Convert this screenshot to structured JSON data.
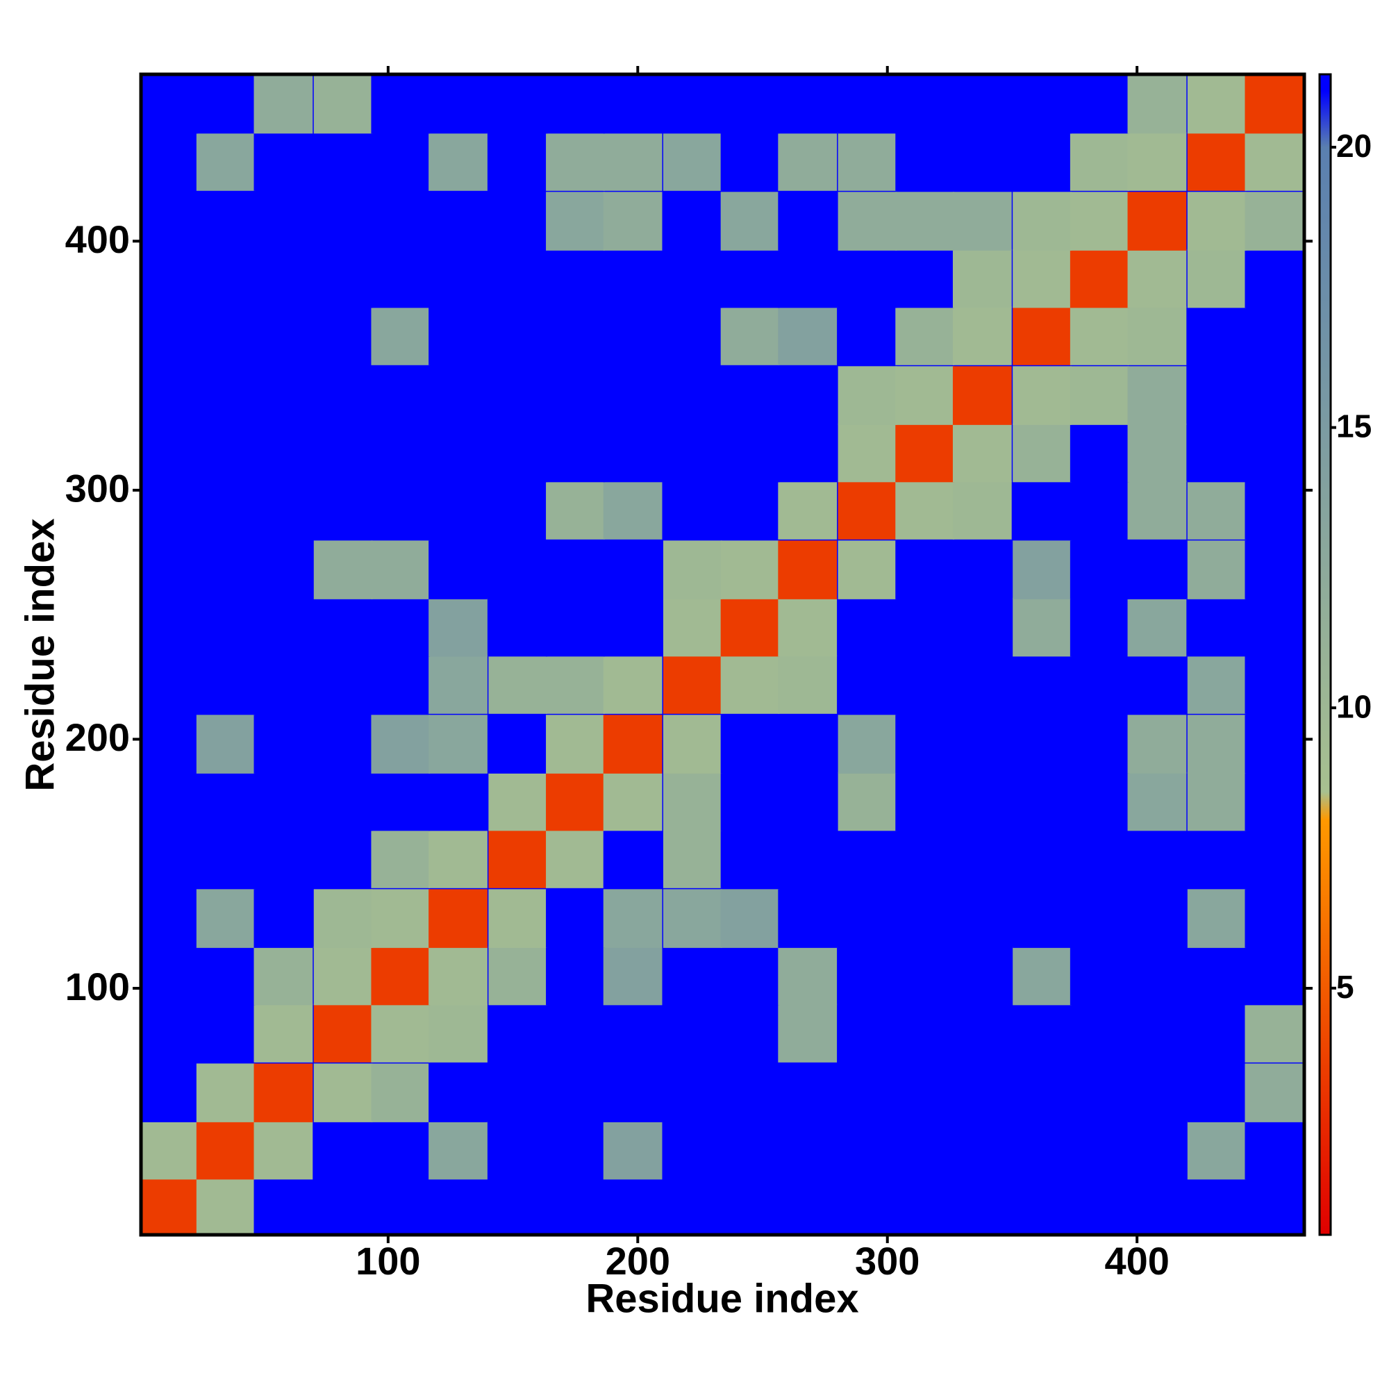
{
  "chart_data": {
    "type": "heatmap",
    "x_label": "Residue index",
    "y_label": "Residue index",
    "x": [
      12,
      35,
      58,
      82,
      105,
      128,
      152,
      175,
      198,
      222,
      245,
      268,
      292,
      315,
      338,
      362,
      385,
      408,
      432,
      455
    ],
    "y": [
      12,
      35,
      58,
      82,
      105,
      128,
      152,
      175,
      198,
      222,
      245,
      268,
      292,
      315,
      338,
      362,
      385,
      408,
      432,
      455
    ],
    "z": [
      [
        3.5,
        9.5,
        21,
        21,
        21,
        21,
        21,
        21,
        21,
        21,
        21,
        21,
        21,
        21,
        21,
        21,
        21,
        21,
        21,
        21
      ],
      [
        9.5,
        3.5,
        9.5,
        21,
        21,
        13,
        21,
        21,
        14,
        21,
        21,
        21,
        21,
        21,
        21,
        21,
        21,
        21,
        13,
        21
      ],
      [
        21,
        9.5,
        3.5,
        9.5,
        11,
        21,
        21,
        21,
        21,
        21,
        21,
        21,
        21,
        21,
        21,
        21,
        21,
        21,
        21,
        12
      ],
      [
        21,
        21,
        9.5,
        3.5,
        9.5,
        10,
        21,
        21,
        21,
        21,
        21,
        12,
        21,
        21,
        21,
        21,
        21,
        21,
        21,
        11
      ],
      [
        21,
        21,
        11,
        9.5,
        3.5,
        9.5,
        11,
        21,
        14,
        21,
        21,
        12,
        21,
        21,
        21,
        13,
        21,
        21,
        21,
        21
      ],
      [
        21,
        13,
        21,
        10,
        9.5,
        3.5,
        9.5,
        21,
        13,
        13,
        14,
        21,
        21,
        21,
        21,
        21,
        21,
        21,
        13,
        21
      ],
      [
        21,
        21,
        21,
        21,
        11,
        9.5,
        3.5,
        9.5,
        21,
        11,
        21,
        21,
        21,
        21,
        21,
        21,
        21,
        21,
        21,
        21
      ],
      [
        21,
        21,
        21,
        21,
        21,
        21,
        9.5,
        3.5,
        9.5,
        11,
        21,
        21,
        11,
        21,
        21,
        21,
        21,
        13,
        12,
        21
      ],
      [
        21,
        14,
        21,
        21,
        14,
        13,
        21,
        9.5,
        3.5,
        9.5,
        21,
        21,
        13,
        21,
        21,
        21,
        21,
        12,
        12,
        21
      ],
      [
        21,
        21,
        21,
        21,
        21,
        13,
        11,
        11,
        9.5,
        3.5,
        9.5,
        10,
        21,
        21,
        21,
        21,
        21,
        21,
        13,
        21
      ],
      [
        21,
        21,
        21,
        21,
        21,
        14,
        21,
        21,
        21,
        9.5,
        3.5,
        9.5,
        21,
        21,
        21,
        12,
        21,
        13,
        21,
        21
      ],
      [
        21,
        21,
        21,
        12,
        12,
        21,
        21,
        21,
        21,
        10,
        9.5,
        3.5,
        9.5,
        21,
        21,
        14,
        21,
        21,
        12,
        21
      ],
      [
        21,
        21,
        21,
        21,
        21,
        21,
        21,
        11,
        13,
        21,
        21,
        9.5,
        3.5,
        9.5,
        10,
        21,
        21,
        12,
        12,
        21
      ],
      [
        21,
        21,
        21,
        21,
        21,
        21,
        21,
        21,
        21,
        21,
        21,
        21,
        9.5,
        3.5,
        9.5,
        11,
        21,
        12,
        21,
        21
      ],
      [
        21,
        21,
        21,
        21,
        21,
        21,
        21,
        21,
        21,
        21,
        21,
        21,
        10,
        9.5,
        3.5,
        9.5,
        10,
        12,
        21,
        21
      ],
      [
        21,
        21,
        21,
        21,
        13,
        21,
        21,
        21,
        21,
        21,
        12,
        14,
        21,
        11,
        9.5,
        3.5,
        9.5,
        10,
        21,
        21
      ],
      [
        21,
        21,
        21,
        21,
        21,
        21,
        21,
        21,
        21,
        21,
        21,
        21,
        21,
        21,
        10,
        9.5,
        3.5,
        9.5,
        10,
        21
      ],
      [
        21,
        21,
        21,
        21,
        21,
        21,
        21,
        13,
        12,
        21,
        13,
        21,
        12,
        12,
        12,
        10,
        9.5,
        3.5,
        9.5,
        11
      ],
      [
        21,
        13,
        21,
        21,
        21,
        13,
        21,
        12,
        12,
        13,
        21,
        12,
        12,
        21,
        21,
        21,
        10,
        9.5,
        3.5,
        9.5
      ],
      [
        21,
        21,
        12,
        11,
        21,
        21,
        21,
        21,
        21,
        21,
        21,
        21,
        21,
        21,
        21,
        21,
        21,
        11,
        9.5,
        3.5
      ]
    ],
    "xlim": [
      1,
      467
    ],
    "ylim": [
      1,
      467
    ],
    "xticks": [
      100,
      200,
      300,
      400
    ],
    "yticks": [
      100,
      200,
      300,
      400
    ],
    "zlim": [
      0.6,
      21.3
    ],
    "zticks": [
      5,
      10,
      15,
      20
    ],
    "colorscale": [
      [
        0.6,
        "#e00000"
      ],
      [
        8,
        "#ff9900"
      ],
      [
        8.5,
        "#a8c090"
      ],
      [
        20,
        "#5a7fb0"
      ],
      [
        21,
        "#0000ff"
      ]
    ]
  }
}
